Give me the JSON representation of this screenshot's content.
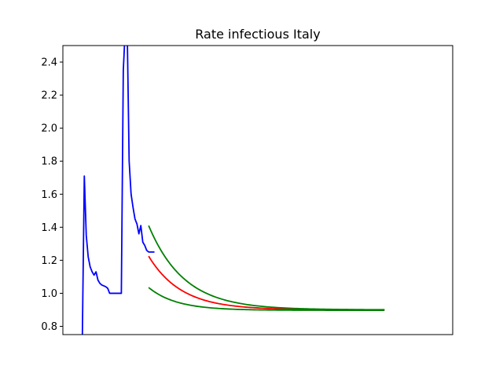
{
  "chart_data": {
    "type": "line",
    "title": "Rate infectious Italy",
    "xlabel": "",
    "ylabel": "",
    "xlim": [
      -10,
      190
    ],
    "ylim": [
      0.75,
      2.5
    ],
    "x_ticks_visible": false,
    "yticks": [
      0.8,
      1.0,
      1.2,
      1.4,
      1.6,
      1.8,
      2.0,
      2.2,
      2.4
    ],
    "ytick_labels": [
      "0.8",
      "1.0",
      "1.2",
      "1.4",
      "1.6",
      "1.8",
      "2.0",
      "2.2",
      "2.4"
    ],
    "grid": false,
    "series": [
      {
        "color": "#0000ff",
        "style": "observed",
        "x": [
          0,
          1,
          2,
          3,
          4,
          5,
          6,
          7,
          8,
          9,
          10,
          11,
          12,
          13,
          14,
          15,
          16,
          17,
          18,
          19,
          20,
          21,
          22,
          23,
          24,
          25,
          26,
          27,
          28,
          29,
          30,
          31,
          32,
          33,
          34,
          35,
          36,
          37
        ],
        "values": [
          0.75,
          1.71,
          1.35,
          1.22,
          1.16,
          1.13,
          1.11,
          1.13,
          1.08,
          1.06,
          1.05,
          1.045,
          1.04,
          1.03,
          1.0,
          1.0,
          1.0,
          1.0,
          1.0,
          1.0,
          1.0,
          2.35,
          2.6,
          2.6,
          1.8,
          1.6,
          1.52,
          1.45,
          1.42,
          1.36,
          1.41,
          1.31,
          1.29,
          1.26,
          1.25,
          1.25,
          1.25,
          1.25
        ]
      },
      {
        "color": "#ff0000",
        "style": "prediction",
        "curve": "exponential",
        "x_start": 34,
        "x_end": 155,
        "start": 1.225,
        "asymptote": 0.9,
        "decay_rate": 0.06
      },
      {
        "color": "#008000",
        "style": "upper-bound",
        "curve": "exponential",
        "x_start": 34,
        "x_end": 155,
        "start": 1.41,
        "asymptote": 0.9,
        "decay_rate": 0.055
      },
      {
        "color": "#008000",
        "style": "lower-bound",
        "curve": "exponential",
        "x_start": 34,
        "x_end": 155,
        "start": 1.035,
        "asymptote": 0.897,
        "decay_rate": 0.07
      }
    ]
  }
}
